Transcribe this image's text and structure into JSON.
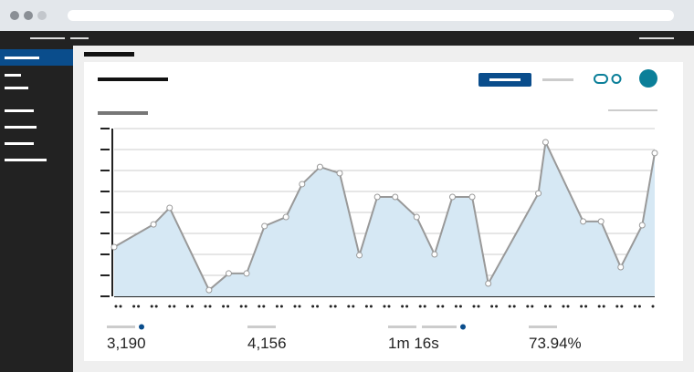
{
  "chart_data": {
    "type": "area",
    "color": "#d6e8f4",
    "line_color": "#999999",
    "grid": true,
    "x": [
      0,
      2.2,
      3.1,
      5.3,
      6.4,
      7.4,
      8.4,
      9.6,
      10.5,
      11.5,
      12.6,
      13.7,
      14.7,
      15.7,
      16.9,
      17.9,
      18.9,
      20,
      20.9,
      23.7,
      24.1,
      26.2,
      27.2,
      28.3,
      29.5,
      30.2
    ],
    "values": [
      2.35,
      3.43,
      4.22,
      0.3,
      1.09,
      1.09,
      3.35,
      3.78,
      5.35,
      6.17,
      5.87,
      1.96,
      4.74,
      4.74,
      3.78,
      2.0,
      4.74,
      4.74,
      0.61,
      4.91,
      7.35,
      3.57,
      3.57,
      1.39,
      3.39,
      6.83
    ],
    "xlim": [
      0,
      30.2
    ],
    "ylim": [
      0,
      8
    ],
    "yticks": [
      0,
      1,
      2,
      3,
      4,
      5,
      6,
      7,
      8
    ]
  },
  "metrics": [
    "3,190",
    "4,156",
    "1m 16s",
    "73.94%"
  ]
}
